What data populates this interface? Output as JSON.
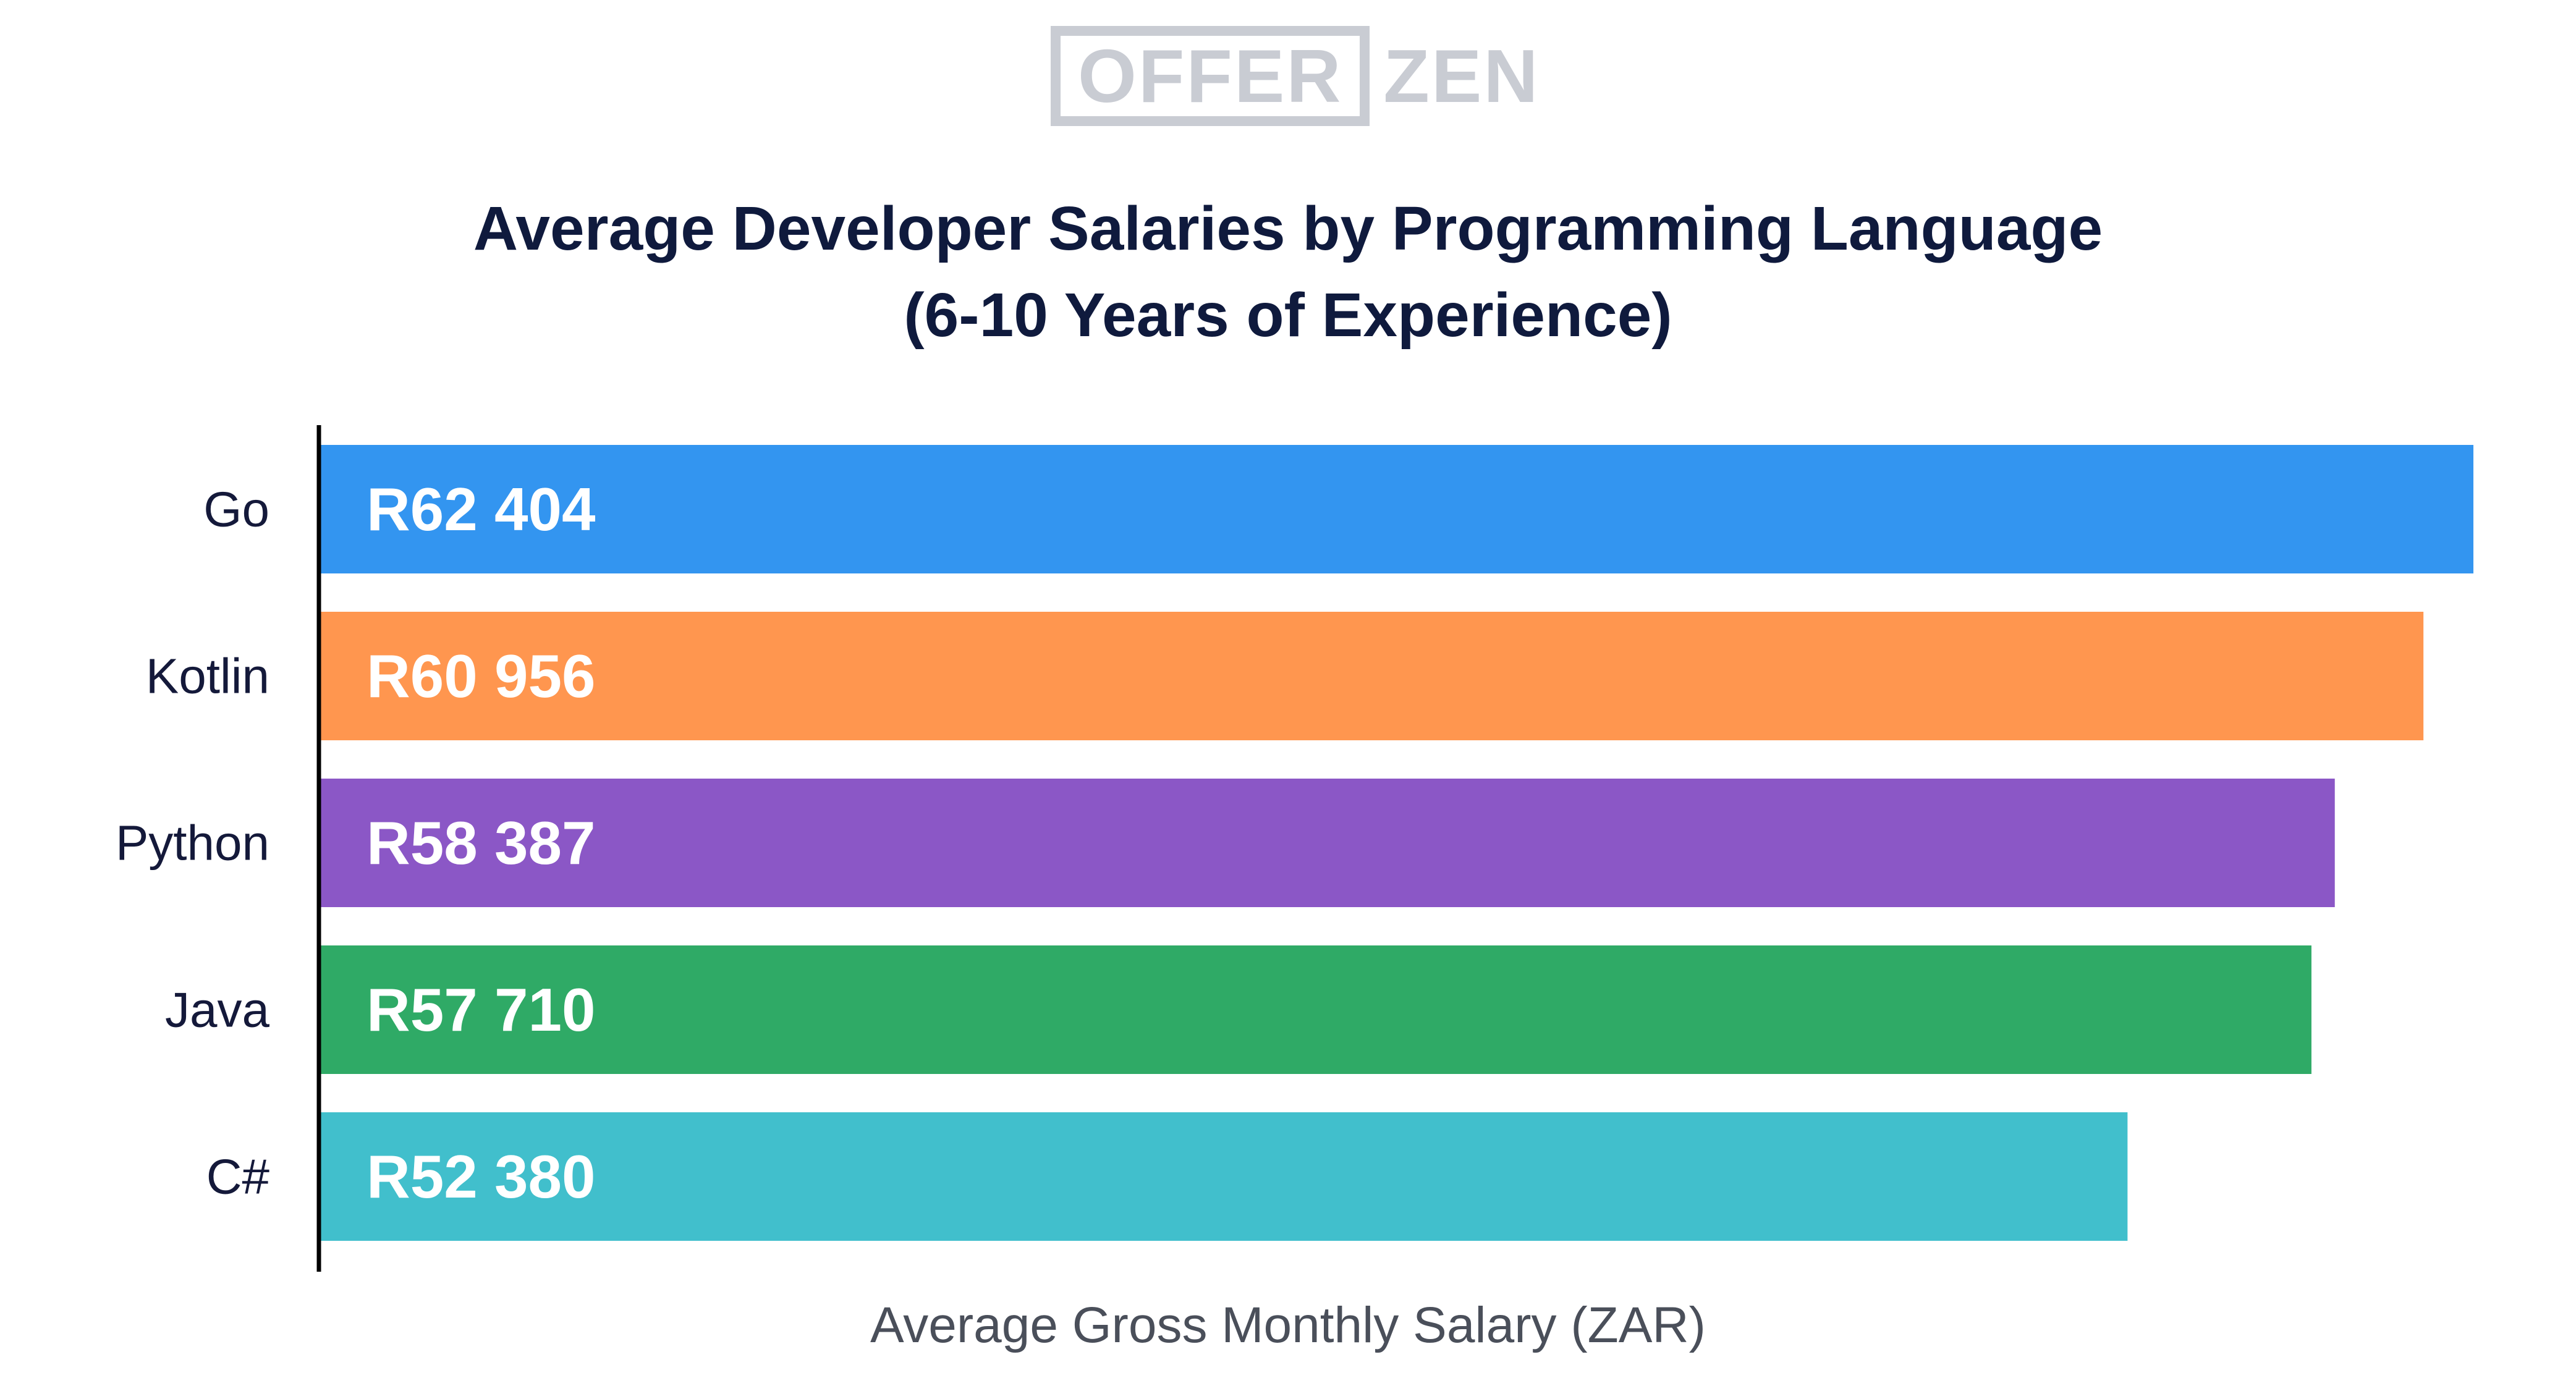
{
  "logo": {
    "boxed_text": "OFFER",
    "tail_text": "ZEN"
  },
  "chart_data": {
    "type": "bar",
    "orientation": "horizontal",
    "title_lines": [
      "Average Developer Salaries by Programming Language",
      "(6-10 Years of Experience)"
    ],
    "xlabel": "Average Gross Monthly Salary (ZAR)",
    "ylabel": "",
    "categories": [
      "Go",
      "Kotlin",
      "Python",
      "Java",
      "C#"
    ],
    "values": [
      62404,
      60956,
      58387,
      57710,
      52380
    ],
    "value_labels": [
      "R62 404",
      "R60 956",
      "R58 387",
      "R57 710",
      "R52 380"
    ],
    "colors": [
      "#3395f0",
      "#ff964f",
      "#8b57c6",
      "#2faa66",
      "#41bfcc"
    ],
    "xlim": [
      0,
      62404
    ],
    "grid": false,
    "legend": "none"
  }
}
